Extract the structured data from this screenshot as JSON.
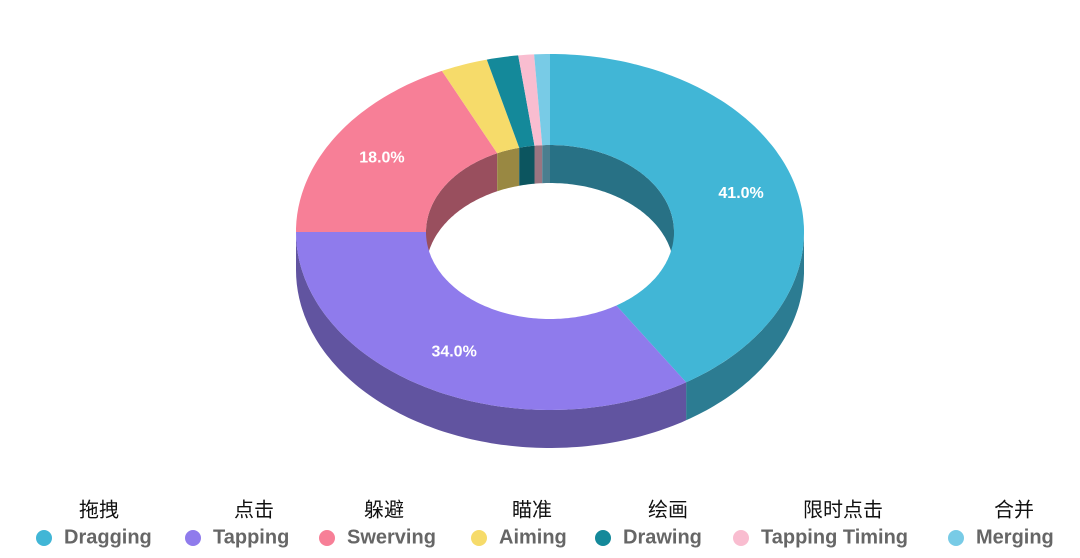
{
  "chart_data": {
    "type": "pie",
    "donut": true,
    "three_d": true,
    "categories": [
      "Dragging",
      "Tapping",
      "Swerving",
      "Aiming",
      "Drawing",
      "Tapping Timing",
      "Merging"
    ],
    "labels_zh": [
      "拖拽",
      "点击",
      "躲避",
      "瞄准",
      "绘画",
      "限时点击",
      "合并"
    ],
    "values": [
      41,
      34,
      18,
      3,
      2,
      1,
      1
    ],
    "value_labels": [
      "41.0%",
      "34.0%",
      "18.0%",
      null,
      null,
      null,
      null
    ],
    "colors": [
      "#41b6d6",
      "#8f7bec",
      "#f77f97",
      "#f6db6a",
      "#14899a",
      "#f9bdd0",
      "#78cbe6"
    ],
    "legend": "bottom"
  }
}
